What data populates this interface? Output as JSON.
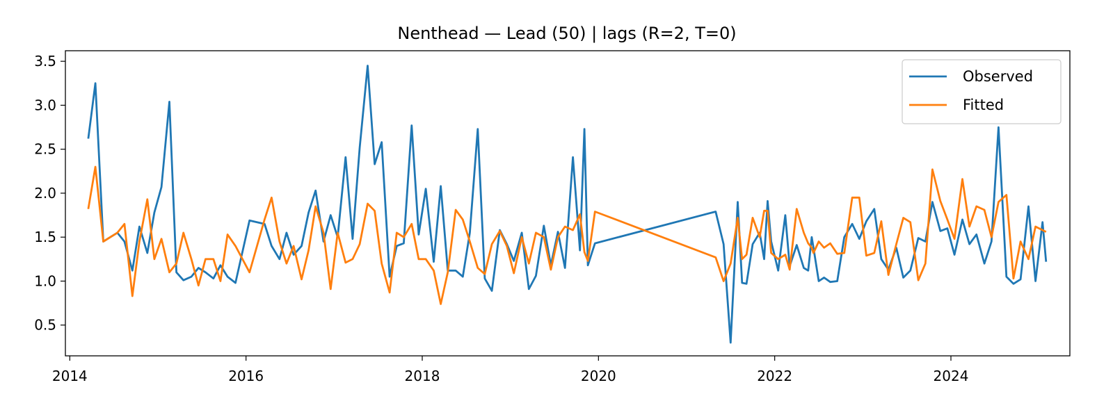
{
  "chart_data": {
    "type": "line",
    "title": "Nenthead — Lead (50) | lags (R=2, T=0)",
    "xlabel": "",
    "ylabel": "",
    "xlim": [
      2013.95,
      2025.35
    ],
    "ylim": [
      0.15,
      3.62
    ],
    "xticks": [
      2014,
      2016,
      2018,
      2020,
      2022,
      2024
    ],
    "xtick_labels": [
      "2014",
      "2016",
      "2018",
      "2020",
      "2022",
      "2024"
    ],
    "yticks": [
      0.5,
      1.0,
      1.5,
      2.0,
      2.5,
      3.0,
      3.5
    ],
    "ytick_labels": [
      "0.5",
      "1.0",
      "1.5",
      "2.0",
      "2.5",
      "3.0",
      "3.5"
    ],
    "grid": false,
    "legend": "top-right",
    "series": [
      {
        "name": "Observed",
        "color": "#1f77b4",
        "x": [
          2014.21,
          2014.29,
          2014.38,
          2014.46,
          2014.54,
          2014.62,
          2014.71,
          2014.79,
          2014.88,
          2014.96,
          2015.04,
          2015.13,
          2015.21,
          2015.29,
          2015.38,
          2015.46,
          2015.54,
          2015.63,
          2015.71,
          2015.79,
          2015.88,
          2016.04,
          2016.21,
          2016.29,
          2016.38,
          2016.46,
          2016.54,
          2016.63,
          2016.71,
          2016.79,
          2016.88,
          2016.96,
          2017.04,
          2017.13,
          2017.21,
          2017.29,
          2017.38,
          2017.46,
          2017.54,
          2017.63,
          2017.71,
          2017.79,
          2017.88,
          2017.96,
          2018.04,
          2018.13,
          2018.21,
          2018.29,
          2018.38,
          2018.46,
          2018.54,
          2018.63,
          2018.71,
          2018.79,
          2018.88,
          2018.96,
          2019.04,
          2019.13,
          2019.21,
          2019.29,
          2019.38,
          2019.46,
          2019.54,
          2019.62,
          2019.71,
          2019.79,
          2019.84,
          2019.88,
          2019.96,
          2021.33,
          2021.42,
          2021.5,
          2021.58,
          2021.63,
          2021.68,
          2021.75,
          2021.83,
          2021.88,
          2021.92,
          2021.96,
          2022.04,
          2022.12,
          2022.17,
          2022.25,
          2022.33,
          2022.38,
          2022.42,
          2022.44,
          2022.5,
          2022.56,
          2022.63,
          2022.71,
          2022.79,
          2022.88,
          2022.96,
          2023.04,
          2023.13,
          2023.21,
          2023.29,
          2023.38,
          2023.46,
          2023.54,
          2023.63,
          2023.71,
          2023.79,
          2023.88,
          2023.96,
          2024.04,
          2024.13,
          2024.21,
          2024.29,
          2024.38,
          2024.46,
          2024.54,
          2024.63,
          2024.71,
          2024.79,
          2024.88,
          2024.96,
          2025.04,
          2025.08
        ],
        "y": [
          2.62,
          3.25,
          1.45,
          1.5,
          1.55,
          1.45,
          1.12,
          1.62,
          1.32,
          1.78,
          2.07,
          3.04,
          1.1,
          1.01,
          1.05,
          1.15,
          1.1,
          1.03,
          1.18,
          1.05,
          0.98,
          1.69,
          1.65,
          1.4,
          1.25,
          1.55,
          1.3,
          1.4,
          1.78,
          2.03,
          1.45,
          1.75,
          1.5,
          2.41,
          1.48,
          2.52,
          3.45,
          2.33,
          2.58,
          1.05,
          1.4,
          1.43,
          2.77,
          1.53,
          2.05,
          1.22,
          2.08,
          1.12,
          1.12,
          1.05,
          1.55,
          2.73,
          1.03,
          0.89,
          1.58,
          1.42,
          1.23,
          1.55,
          0.91,
          1.06,
          1.63,
          1.18,
          1.56,
          1.15,
          2.41,
          1.35,
          2.73,
          1.18,
          1.43,
          1.79,
          1.42,
          0.3,
          1.9,
          0.98,
          0.97,
          1.42,
          1.55,
          1.25,
          1.91,
          1.45,
          1.12,
          1.75,
          1.17,
          1.41,
          1.15,
          1.12,
          1.5,
          1.38,
          1.0,
          1.04,
          0.99,
          1.0,
          1.5,
          1.65,
          1.48,
          1.68,
          1.82,
          1.25,
          1.13,
          1.38,
          1.04,
          1.12,
          1.49,
          1.45,
          1.9,
          1.57,
          1.6,
          1.3,
          1.7,
          1.42,
          1.53,
          1.2,
          1.45,
          2.75,
          1.05,
          0.97,
          1.02,
          1.85,
          1.0,
          1.67,
          1.22
        ]
      },
      {
        "name": "Fitted",
        "color": "#ff7f0e",
        "x": [
          2014.21,
          2014.29,
          2014.38,
          2014.46,
          2014.54,
          2014.62,
          2014.71,
          2014.79,
          2014.88,
          2014.96,
          2015.04,
          2015.13,
          2015.21,
          2015.29,
          2015.38,
          2015.46,
          2015.54,
          2015.63,
          2015.71,
          2015.79,
          2015.88,
          2016.04,
          2016.21,
          2016.29,
          2016.38,
          2016.46,
          2016.54,
          2016.63,
          2016.71,
          2016.79,
          2016.88,
          2016.96,
          2017.04,
          2017.13,
          2017.21,
          2017.29,
          2017.38,
          2017.46,
          2017.54,
          2017.63,
          2017.71,
          2017.79,
          2017.88,
          2017.96,
          2018.04,
          2018.13,
          2018.21,
          2018.29,
          2018.38,
          2018.46,
          2018.54,
          2018.63,
          2018.71,
          2018.79,
          2018.88,
          2018.96,
          2019.04,
          2019.13,
          2019.21,
          2019.29,
          2019.38,
          2019.46,
          2019.54,
          2019.62,
          2019.71,
          2019.79,
          2019.84,
          2019.88,
          2019.96,
          2021.33,
          2021.42,
          2021.5,
          2021.58,
          2021.63,
          2021.68,
          2021.75,
          2021.83,
          2021.88,
          2021.92,
          2021.96,
          2022.04,
          2022.12,
          2022.17,
          2022.25,
          2022.33,
          2022.38,
          2022.42,
          2022.44,
          2022.5,
          2022.56,
          2022.63,
          2022.71,
          2022.79,
          2022.88,
          2022.96,
          2023.04,
          2023.13,
          2023.21,
          2023.29,
          2023.38,
          2023.46,
          2023.54,
          2023.63,
          2023.71,
          2023.79,
          2023.88,
          2023.96,
          2024.04,
          2024.13,
          2024.21,
          2024.29,
          2024.38,
          2024.46,
          2024.54,
          2024.63,
          2024.71,
          2024.79,
          2024.88,
          2024.96,
          2025.04,
          2025.08
        ],
        "y": [
          1.82,
          2.3,
          1.45,
          1.5,
          1.55,
          1.65,
          0.83,
          1.45,
          1.93,
          1.25,
          1.48,
          1.1,
          1.2,
          1.55,
          1.25,
          0.95,
          1.25,
          1.25,
          1.0,
          1.53,
          1.4,
          1.1,
          1.7,
          1.95,
          1.45,
          1.2,
          1.4,
          1.02,
          1.35,
          1.85,
          1.55,
          0.91,
          1.55,
          1.21,
          1.25,
          1.42,
          1.88,
          1.8,
          1.2,
          0.87,
          1.55,
          1.5,
          1.65,
          1.25,
          1.25,
          1.12,
          0.74,
          1.1,
          1.81,
          1.7,
          1.45,
          1.15,
          1.08,
          1.42,
          1.57,
          1.4,
          1.09,
          1.5,
          1.2,
          1.55,
          1.5,
          1.13,
          1.5,
          1.62,
          1.58,
          1.76,
          1.33,
          1.23,
          1.79,
          1.27,
          1.0,
          1.2,
          1.72,
          1.25,
          1.3,
          1.72,
          1.5,
          1.8,
          1.8,
          1.32,
          1.25,
          1.3,
          1.13,
          1.82,
          1.55,
          1.43,
          1.38,
          1.32,
          1.45,
          1.38,
          1.43,
          1.31,
          1.32,
          1.95,
          1.95,
          1.29,
          1.32,
          1.68,
          1.07,
          1.42,
          1.72,
          1.67,
          1.01,
          1.2,
          2.27,
          1.91,
          1.7,
          1.48,
          2.16,
          1.62,
          1.85,
          1.81,
          1.5,
          1.9,
          1.98,
          1.03,
          1.45,
          1.25,
          1.62,
          1.58,
          1.56
        ]
      }
    ]
  }
}
